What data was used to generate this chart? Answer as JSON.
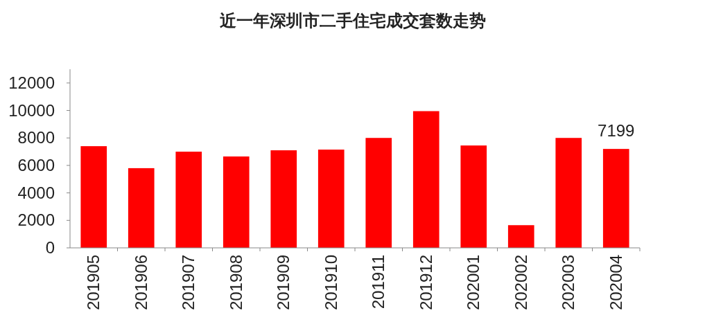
{
  "chart_data": {
    "type": "bar",
    "title": "近一年深圳市二手住宅成交套数走势",
    "categories": [
      "201905",
      "201906",
      "201907",
      "201908",
      "201909",
      "201910",
      "201911",
      "201912",
      "202001",
      "202002",
      "202003",
      "202004"
    ],
    "values": [
      7400,
      5800,
      7000,
      6650,
      7100,
      7150,
      8000,
      9950,
      7450,
      1650,
      8000,
      7199
    ],
    "value_labels": [
      null,
      null,
      null,
      null,
      null,
      null,
      null,
      null,
      null,
      null,
      null,
      "7199"
    ],
    "color": "#ff0000",
    "ylim": [
      0,
      13000
    ],
    "yticks": [
      0,
      2000,
      4000,
      6000,
      8000,
      10000,
      12000
    ],
    "grid": false
  }
}
